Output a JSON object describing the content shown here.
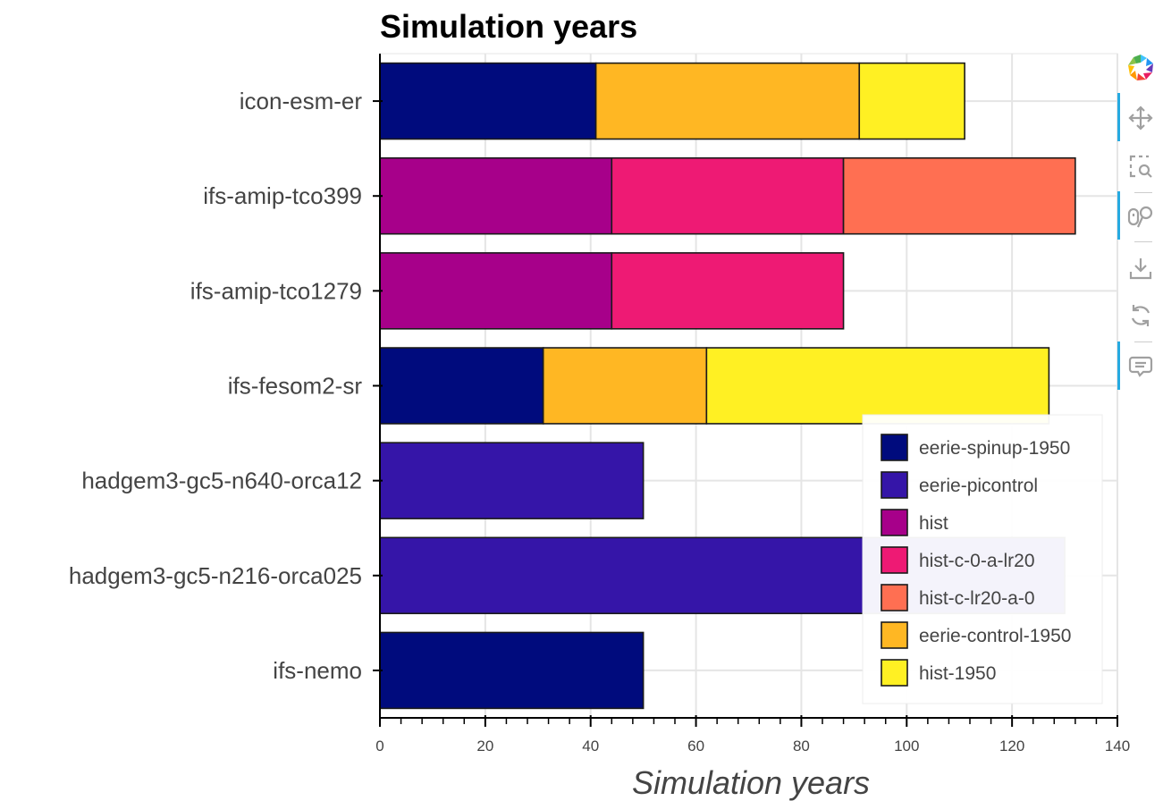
{
  "chart_data": {
    "type": "bar",
    "orientation": "horizontal",
    "stacked": true,
    "title": "Simulation years",
    "xlabel": "Simulation years",
    "ylabel": "",
    "xlim": [
      0,
      140
    ],
    "xticks": [
      0,
      20,
      40,
      60,
      80,
      100,
      120,
      140
    ],
    "xtick_labels": [
      "0",
      "20",
      "40",
      "60",
      "80",
      "100",
      "120",
      "140"
    ],
    "grid": true,
    "legend_position": "bottom-right",
    "categories": [
      "icon-esm-er",
      "ifs-amip-tco399",
      "ifs-amip-tco1279",
      "ifs-fesom2-sr",
      "hadgem3-gc5-n640-orca12",
      "hadgem3-gc5-n216-orca025",
      "ifs-nemo"
    ],
    "series": [
      {
        "name": "eerie-spinup-1950",
        "color": "#000b7d",
        "values": [
          41,
          0,
          0,
          31,
          0,
          0,
          50
        ]
      },
      {
        "name": "eerie-picontrol",
        "color": "#3515a8",
        "values": [
          0,
          0,
          0,
          0,
          50,
          130,
          0
        ]
      },
      {
        "name": "hist",
        "color": "#a7008a",
        "values": [
          0,
          44,
          44,
          0,
          0,
          0,
          0
        ]
      },
      {
        "name": "hist-c-0-a-lr20",
        "color": "#ee1a74",
        "values": [
          0,
          44,
          44,
          0,
          0,
          0,
          0
        ]
      },
      {
        "name": "hist-c-lr20-a-0",
        "color": "#ff6f52",
        "values": [
          0,
          44,
          0,
          0,
          0,
          0,
          0
        ]
      },
      {
        "name": "eerie-control-1950",
        "color": "#ffb723",
        "values": [
          50,
          0,
          0,
          31,
          0,
          0,
          0
        ]
      },
      {
        "name": "hist-1950",
        "color": "#fff023",
        "values": [
          20,
          0,
          0,
          65,
          0,
          0,
          0
        ]
      }
    ]
  },
  "toolbar": {
    "logo": "bokeh-logo-icon",
    "tools": [
      {
        "name": "pan-icon",
        "active": true
      },
      {
        "name": "box-zoom-icon",
        "active": false
      },
      {
        "name": "wheel-zoom-icon",
        "active": true
      },
      {
        "name": "save-icon",
        "active": false
      },
      {
        "name": "reset-icon",
        "active": false
      },
      {
        "name": "hover-icon",
        "active": true
      }
    ]
  }
}
